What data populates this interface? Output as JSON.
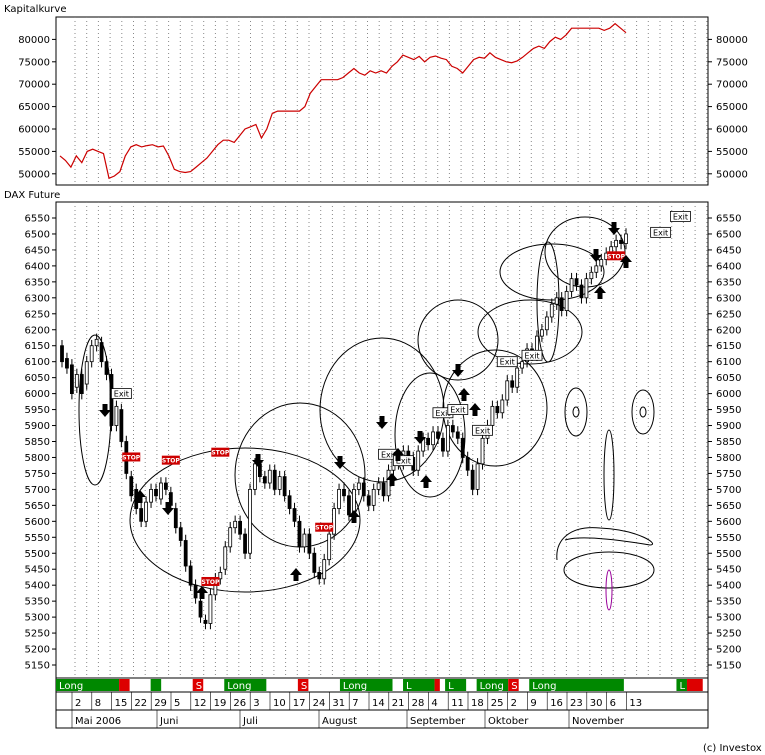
{
  "chart_data": [
    {
      "type": "line",
      "title": "Kapitalkurve",
      "ylim": [
        47500,
        85000
      ],
      "yticks": [
        50000,
        55000,
        60000,
        65000,
        70000,
        75000,
        80000
      ],
      "grid": "vertical-dotted",
      "color": "#cc0000",
      "points": [
        [
          0,
          54000
        ],
        [
          2,
          53000
        ],
        [
          4,
          51500
        ],
        [
          6,
          54000
        ],
        [
          8,
          52500
        ],
        [
          10,
          55000
        ],
        [
          12,
          55500
        ],
        [
          14,
          55000
        ],
        [
          16,
          54500
        ],
        [
          18,
          49000
        ],
        [
          20,
          49500
        ],
        [
          22,
          50500
        ],
        [
          24,
          54000
        ],
        [
          26,
          56000
        ],
        [
          28,
          56500
        ],
        [
          30,
          56000
        ],
        [
          32,
          56300
        ],
        [
          34,
          56500
        ],
        [
          36,
          56000
        ],
        [
          38,
          56200
        ],
        [
          40,
          54000
        ],
        [
          42,
          51000
        ],
        [
          44,
          50500
        ],
        [
          46,
          50300
        ],
        [
          48,
          50500
        ],
        [
          50,
          51500
        ],
        [
          52,
          52500
        ],
        [
          54,
          53500
        ],
        [
          56,
          55000
        ],
        [
          58,
          56500
        ],
        [
          60,
          57500
        ],
        [
          62,
          57500
        ],
        [
          64,
          57000
        ],
        [
          66,
          58500
        ],
        [
          68,
          60000
        ],
        [
          70,
          60500
        ],
        [
          72,
          61000
        ],
        [
          74,
          58000
        ],
        [
          76,
          60000
        ],
        [
          78,
          63500
        ],
        [
          80,
          64000
        ],
        [
          82,
          64000
        ],
        [
          84,
          64000
        ],
        [
          86,
          64000
        ],
        [
          88,
          64000
        ],
        [
          90,
          65000
        ],
        [
          92,
          68000
        ],
        [
          94,
          69500
        ],
        [
          96,
          71000
        ],
        [
          98,
          71000
        ],
        [
          100,
          71000
        ],
        [
          102,
          71000
        ],
        [
          104,
          71500
        ],
        [
          106,
          72500
        ],
        [
          108,
          73500
        ],
        [
          110,
          72500
        ],
        [
          112,
          72000
        ],
        [
          114,
          73000
        ],
        [
          116,
          72500
        ],
        [
          118,
          73000
        ],
        [
          120,
          72500
        ],
        [
          122,
          74000
        ],
        [
          124,
          75000
        ],
        [
          126,
          76500
        ],
        [
          128,
          76000
        ],
        [
          130,
          75500
        ],
        [
          132,
          76200
        ],
        [
          134,
          75000
        ],
        [
          136,
          76000
        ],
        [
          138,
          76300
        ],
        [
          140,
          75800
        ],
        [
          142,
          75500
        ],
        [
          144,
          74000
        ],
        [
          146,
          73500
        ],
        [
          148,
          72500
        ],
        [
          150,
          74000
        ],
        [
          152,
          75500
        ],
        [
          154,
          76000
        ],
        [
          156,
          75800
        ],
        [
          158,
          77000
        ],
        [
          160,
          76000
        ],
        [
          162,
          75500
        ],
        [
          164,
          75000
        ],
        [
          166,
          74800
        ],
        [
          168,
          75200
        ],
        [
          170,
          76000
        ],
        [
          172,
          77000
        ],
        [
          174,
          78000
        ],
        [
          176,
          78500
        ],
        [
          178,
          78000
        ],
        [
          180,
          79500
        ],
        [
          182,
          80500
        ],
        [
          184,
          80000
        ],
        [
          186,
          81000
        ],
        [
          188,
          82500
        ],
        [
          190,
          82500
        ],
        [
          192,
          82500
        ],
        [
          194,
          82500
        ],
        [
          196,
          82500
        ],
        [
          198,
          82500
        ],
        [
          200,
          82000
        ],
        [
          202,
          82500
        ],
        [
          204,
          83500
        ],
        [
          206,
          82500
        ],
        [
          208,
          81500
        ]
      ]
    },
    {
      "type": "candlestick",
      "title": "DAX Future",
      "ylim": [
        5100,
        6600
      ],
      "yticks": [
        5150,
        5200,
        5250,
        5300,
        5350,
        5400,
        5450,
        5500,
        5550,
        5600,
        5650,
        5700,
        5750,
        5800,
        5850,
        5900,
        5950,
        6000,
        6050,
        6100,
        6150,
        6200,
        6250,
        6300,
        6350,
        6400,
        6450,
        6500,
        6550
      ],
      "grid": "vertical-dotted",
      "bars": [
        [
          6150,
          6100
        ],
        [
          6110,
          6080
        ],
        [
          6090,
          6000
        ],
        [
          6020,
          6060
        ],
        [
          6060,
          6000
        ],
        [
          6030,
          6100
        ],
        [
          6100,
          6150
        ],
        [
          6150,
          6170
        ],
        [
          6160,
          6100
        ],
        [
          6100,
          6060
        ],
        [
          6060,
          5900
        ],
        [
          5900,
          5960
        ],
        [
          5950,
          5850
        ],
        [
          5850,
          5750
        ],
        [
          5740,
          5680
        ],
        [
          5700,
          5640
        ],
        [
          5640,
          5600
        ],
        [
          5600,
          5660
        ],
        [
          5660,
          5700
        ],
        [
          5700,
          5680
        ],
        [
          5670,
          5720
        ],
        [
          5720,
          5700
        ],
        [
          5690,
          5650
        ],
        [
          5640,
          5580
        ],
        [
          5580,
          5540
        ],
        [
          5540,
          5460
        ],
        [
          5460,
          5400
        ],
        [
          5400,
          5360
        ],
        [
          5350,
          5300
        ],
        [
          5290,
          5280
        ],
        [
          5280,
          5370
        ],
        [
          5370,
          5420
        ],
        [
          5420,
          5440
        ],
        [
          5450,
          5520
        ],
        [
          5520,
          5580
        ],
        [
          5580,
          5600
        ],
        [
          5600,
          5560
        ],
        [
          5560,
          5500
        ],
        [
          5500,
          5700
        ],
        [
          5700,
          5780
        ],
        [
          5780,
          5740
        ],
        [
          5740,
          5720
        ],
        [
          5720,
          5760
        ],
        [
          5760,
          5700
        ],
        [
          5700,
          5740
        ],
        [
          5740,
          5680
        ],
        [
          5680,
          5640
        ],
        [
          5640,
          5600
        ],
        [
          5600,
          5520
        ],
        [
          5520,
          5560
        ],
        [
          5560,
          5500
        ],
        [
          5500,
          5440
        ],
        [
          5440,
          5420
        ],
        [
          5420,
          5480
        ],
        [
          5480,
          5560
        ],
        [
          5560,
          5640
        ],
        [
          5640,
          5700
        ],
        [
          5700,
          5680
        ],
        [
          5680,
          5620
        ],
        [
          5620,
          5700
        ],
        [
          5700,
          5720
        ],
        [
          5720,
          5680
        ],
        [
          5680,
          5650
        ],
        [
          5650,
          5700
        ],
        [
          5700,
          5720
        ],
        [
          5720,
          5680
        ],
        [
          5680,
          5760
        ],
        [
          5760,
          5800
        ],
        [
          5800,
          5780
        ],
        [
          5780,
          5820
        ],
        [
          5820,
          5800
        ],
        [
          5800,
          5760
        ],
        [
          5760,
          5820
        ],
        [
          5820,
          5860
        ],
        [
          5860,
          5840
        ],
        [
          5840,
          5880
        ],
        [
          5880,
          5860
        ],
        [
          5860,
          5820
        ],
        [
          5820,
          5900
        ],
        [
          5900,
          5880
        ],
        [
          5880,
          5860
        ],
        [
          5860,
          5800
        ],
        [
          5800,
          5760
        ],
        [
          5760,
          5700
        ],
        [
          5700,
          5780
        ],
        [
          5780,
          5860
        ],
        [
          5860,
          5900
        ],
        [
          5900,
          5960
        ],
        [
          5960,
          5940
        ],
        [
          5940,
          5980
        ],
        [
          5980,
          6040
        ],
        [
          6040,
          6020
        ],
        [
          6020,
          6080
        ],
        [
          6080,
          6100
        ],
        [
          6100,
          6140
        ],
        [
          6140,
          6120
        ],
        [
          6120,
          6180
        ],
        [
          6180,
          6200
        ],
        [
          6200,
          6240
        ],
        [
          6240,
          6280
        ],
        [
          6280,
          6300
        ],
        [
          6300,
          6260
        ],
        [
          6260,
          6320
        ],
        [
          6320,
          6360
        ],
        [
          6360,
          6340
        ],
        [
          6340,
          6300
        ],
        [
          6300,
          6360
        ],
        [
          6360,
          6380
        ],
        [
          6380,
          6400
        ],
        [
          6400,
          6420
        ],
        [
          6420,
          6440
        ],
        [
          6440,
          6460
        ],
        [
          6460,
          6480
        ],
        [
          6480,
          6470
        ],
        [
          6470,
          6500
        ]
      ],
      "tags": [
        {
          "t": "Exit",
          "i": 12,
          "y": 6000
        },
        {
          "t": "STOP",
          "i": 14,
          "y": 5800
        },
        {
          "t": "STOP",
          "i": 22,
          "y": 5790
        },
        {
          "t": "STOP",
          "i": 32,
          "y": 5815
        },
        {
          "t": "STOP",
          "i": 30,
          "y": 5410
        },
        {
          "t": "STOP",
          "i": 53,
          "y": 5580
        },
        {
          "t": "Exit",
          "i": 66,
          "y": 5810
        },
        {
          "t": "Exit",
          "i": 69,
          "y": 5790
        },
        {
          "t": "Exit",
          "i": 77,
          "y": 5940
        },
        {
          "t": "Exit",
          "i": 80,
          "y": 5950
        },
        {
          "t": "Exit",
          "i": 85,
          "y": 5885
        },
        {
          "t": "Exit",
          "i": 90,
          "y": 6100
        },
        {
          "t": "Exit",
          "i": 95,
          "y": 6120
        },
        {
          "t": "STOP",
          "i": 112,
          "y": 6430
        },
        {
          "t": "Exit",
          "i": 121,
          "y": 6505
        },
        {
          "t": "Exit",
          "i": 125,
          "y": 6555
        }
      ]
    }
  ],
  "x_axis": {
    "days": [
      "2",
      "8",
      "15",
      "22",
      "29",
      "5",
      "12",
      "19",
      "26",
      "3",
      "10",
      "17",
      "24",
      "31",
      "7",
      "14",
      "21",
      "28",
      "4",
      "11",
      "18",
      "25",
      "2",
      "9",
      "16",
      "23",
      "30",
      "6",
      "13"
    ],
    "months": [
      "Mai 2006",
      "Juni",
      "Juli",
      "August",
      "September",
      "Oktober",
      "November"
    ]
  },
  "signal_bar": [
    {
      "label": "Long",
      "color": "#008800",
      "from": 0,
      "to": 6
    },
    {
      "label": "",
      "color": "#dd0000",
      "from": 6,
      "to": 7
    },
    {
      "label": "",
      "color": "#008800",
      "from": 9,
      "to": 10
    },
    {
      "label": "S",
      "color": "#dd0000",
      "from": 13,
      "to": 14
    },
    {
      "label": "Long",
      "color": "#008800",
      "from": 16,
      "to": 20
    },
    {
      "label": "S",
      "color": "#dd0000",
      "from": 23,
      "to": 24
    },
    {
      "label": "Long",
      "color": "#008800",
      "from": 27,
      "to": 32
    },
    {
      "label": "L",
      "color": "#008800",
      "from": 33,
      "to": 36
    },
    {
      "label": "",
      "color": "#dd0000",
      "from": 36,
      "to": 36.5
    },
    {
      "label": "L",
      "color": "#008800",
      "from": 37,
      "to": 39
    },
    {
      "label": "Long",
      "color": "#008800",
      "from": 40,
      "to": 43
    },
    {
      "label": "S",
      "color": "#dd0000",
      "from": 43,
      "to": 44
    },
    {
      "label": "Long",
      "color": "#008800",
      "from": 45,
      "to": 54
    },
    {
      "label": "L",
      "color": "#008800",
      "from": 59,
      "to": 60
    },
    {
      "label": "",
      "color": "#dd0000",
      "from": 60,
      "to": 61.5
    }
  ],
  "copyright": "(c) Investox"
}
